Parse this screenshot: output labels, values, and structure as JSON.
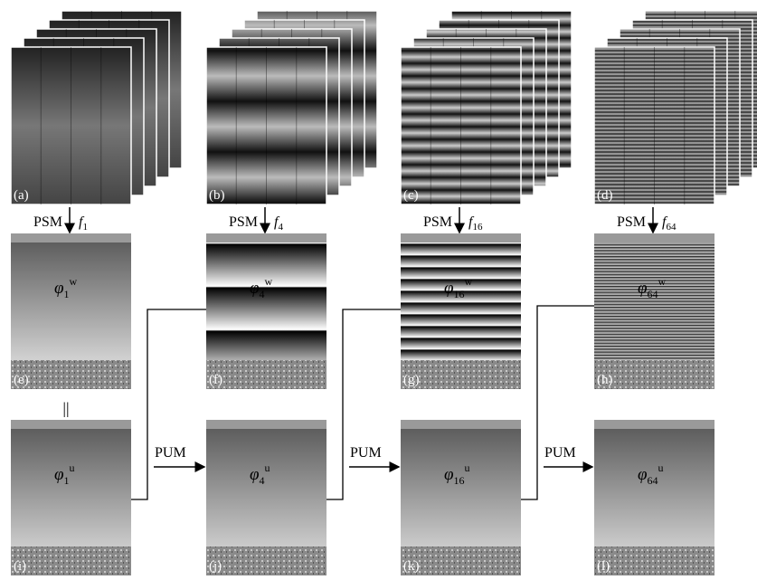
{
  "stacks": [
    {
      "label": "(a)"
    },
    {
      "label": "(b)"
    },
    {
      "label": "(c)"
    },
    {
      "label": "(d)"
    }
  ],
  "psm": [
    {
      "text": "PSM",
      "f": "f",
      "sub": "1"
    },
    {
      "text": "PSM",
      "f": "f",
      "sub": "4"
    },
    {
      "text": "PSM",
      "f": "f",
      "sub": "16"
    },
    {
      "text": "PSM",
      "f": "f",
      "sub": "64"
    }
  ],
  "wrapped": [
    {
      "label": "(e)",
      "symbol": "φ",
      "sub": "1",
      "sup": "w"
    },
    {
      "label": "(f)",
      "symbol": "φ",
      "sub": "4",
      "sup": "w"
    },
    {
      "label": "(g)",
      "symbol": "φ",
      "sub": "16",
      "sup": "w"
    },
    {
      "label": "(h)",
      "symbol": "φ",
      "sub": "64",
      "sup": "w"
    }
  ],
  "unwrapped": [
    {
      "label": "(i)",
      "symbol": "φ",
      "sub": "1",
      "sup": "u"
    },
    {
      "label": "(j)",
      "symbol": "φ",
      "sub": "4",
      "sup": "u"
    },
    {
      "label": "(k)",
      "symbol": "φ",
      "sub": "16",
      "sup": "u"
    },
    {
      "label": "(l)",
      "symbol": "φ",
      "sub": "64",
      "sup": "u"
    }
  ],
  "pum": [
    "PUM",
    "PUM",
    "PUM"
  ],
  "equal": "||"
}
